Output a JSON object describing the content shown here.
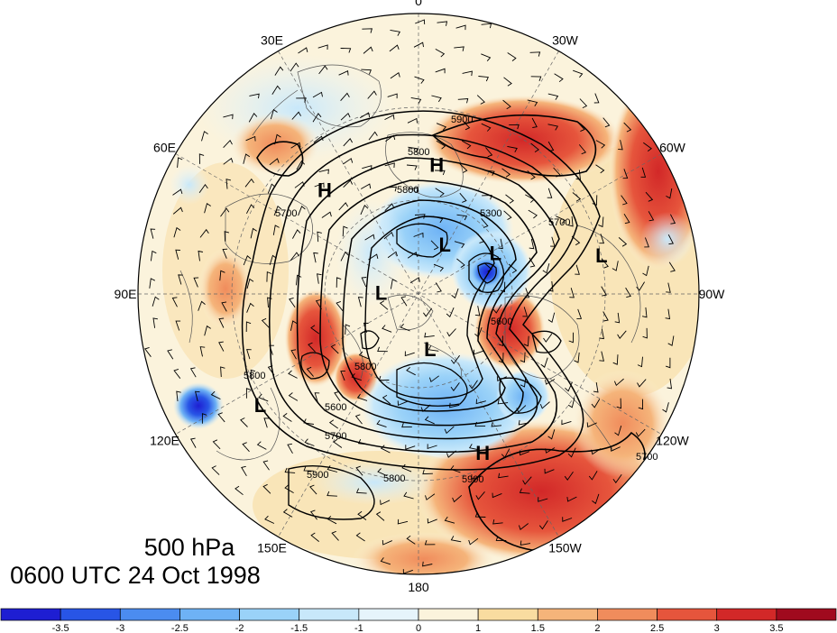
{
  "caption": {
    "level": "500 hPa",
    "valid_time": "0600 UTC 24 Oct 1998"
  },
  "longitude_labels": [
    {
      "text": "0",
      "lon": 0
    },
    {
      "text": "30W",
      "lon": -30
    },
    {
      "text": "60W",
      "lon": -60
    },
    {
      "text": "90W",
      "lon": -90
    },
    {
      "text": "120W",
      "lon": -120
    },
    {
      "text": "150W",
      "lon": -150
    },
    {
      "text": "180",
      "lon": 180
    },
    {
      "text": "150E",
      "lon": 150
    },
    {
      "text": "120E",
      "lon": 120
    },
    {
      "text": "90E",
      "lon": 90
    },
    {
      "text": "60E",
      "lon": 60
    },
    {
      "text": "30E",
      "lon": 30
    }
  ],
  "pressure_centers": [
    {
      "type": "H",
      "lat": 48,
      "lon": -8
    },
    {
      "type": "H",
      "lat": 45,
      "lon": 42
    },
    {
      "type": "H",
      "lat": 35,
      "lon": -158
    },
    {
      "type": "L",
      "lat": 72,
      "lon": -28
    },
    {
      "type": "L",
      "lat": 62,
      "lon": -62
    },
    {
      "type": "L",
      "lat": 78,
      "lon": 88
    },
    {
      "type": "L",
      "lat": 72,
      "lon": -168
    },
    {
      "type": "L",
      "lat": 28,
      "lon": 125
    },
    {
      "type": "L",
      "lat": 30,
      "lon": -78
    }
  ],
  "contour_labels": [
    "5900",
    "5800",
    "5300",
    "5700",
    "5600",
    "5800",
    "5900",
    "5800",
    "5900",
    "5700",
    "5800",
    "5600",
    "5800",
    "5700",
    "5700"
  ],
  "colorbar": {
    "colors": [
      "#1e1ed2",
      "#2855e6",
      "#4b8cf0",
      "#6eb2f5",
      "#9ad2f8",
      "#c8e8fa",
      "#e6f4fb",
      "#fbf3dc",
      "#f9dca0",
      "#f5b47a",
      "#f08c5c",
      "#e6553c",
      "#d22828",
      "#a00a1e"
    ],
    "tick_labels": [
      "-3.5",
      "-3",
      "-2.5",
      "-2",
      "-1.5",
      "-1",
      "0",
      "1",
      "1.5",
      "2",
      "2.5",
      "3",
      "3.5"
    ]
  }
}
